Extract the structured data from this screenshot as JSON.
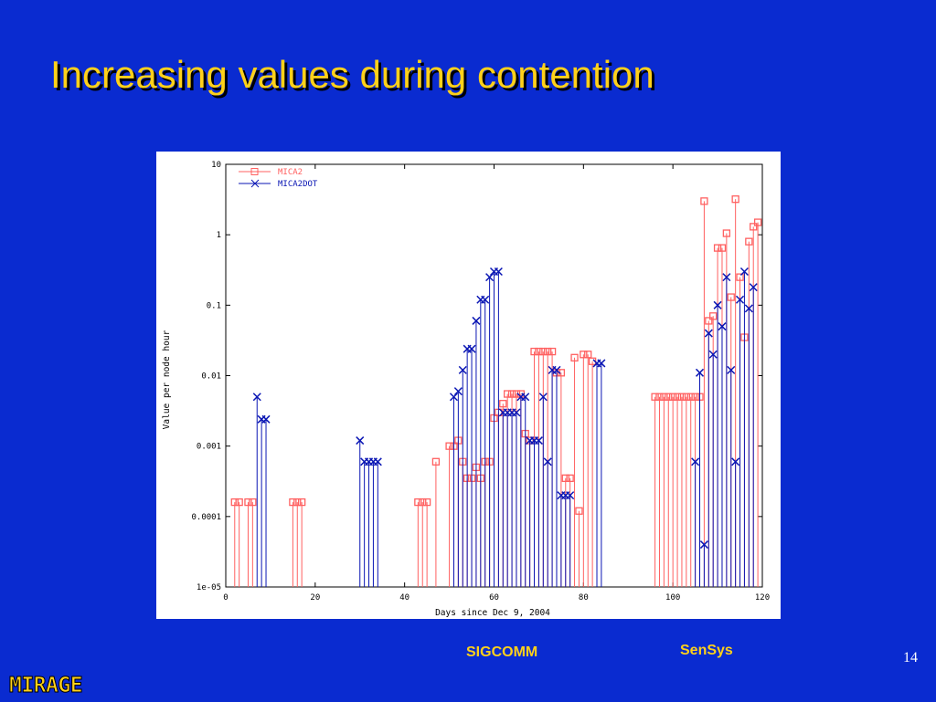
{
  "slide": {
    "title": "Increasing values during contention",
    "annotation_left": "SIGCOMM",
    "annotation_right": "SenSys",
    "page_number": "14",
    "logo_text": "MIRAGE"
  },
  "colors": {
    "background": "#0a2bd0",
    "title": "#ffd11a",
    "mica2": "#ff6060",
    "mica2dot": "#0a16b4"
  },
  "chart_data": {
    "type": "scatter",
    "xlabel": "Days since Dec 9, 2004",
    "ylabel": "Value per node hour",
    "xlim": [
      0,
      120
    ],
    "ylim": [
      1e-05,
      10
    ],
    "yscale": "log",
    "xticks": [
      0,
      20,
      40,
      60,
      80,
      100,
      120
    ],
    "yticks": [
      1e-05,
      0.0001,
      0.001,
      0.01,
      0.1,
      1,
      10
    ],
    "xtick_labels": [
      "0",
      "20",
      "40",
      "60",
      "80",
      "100",
      "120"
    ],
    "ytick_labels": [
      "1e-05",
      "0.0001",
      "0.001",
      "0.01",
      "0.1",
      "1",
      "10"
    ],
    "legend_position": "top-left",
    "grid": false,
    "series": [
      {
        "name": "MICA2",
        "marker": "square",
        "x": [
          2,
          3,
          5,
          6,
          15,
          16,
          17,
          43,
          44,
          45,
          47,
          50,
          51,
          52,
          53,
          54,
          55,
          56,
          57,
          58,
          59,
          60,
          61,
          62,
          63,
          64,
          65,
          66,
          67,
          68,
          69,
          70,
          71,
          72,
          73,
          74,
          75,
          76,
          77,
          78,
          79,
          80,
          81,
          82,
          96,
          97,
          98,
          99,
          100,
          101,
          102,
          103,
          104,
          105,
          106,
          107,
          108,
          109,
          110,
          111,
          112,
          113,
          114,
          115,
          116,
          117,
          118,
          119
        ],
        "y": [
          0.00016,
          0.00016,
          0.00016,
          0.00016,
          0.00016,
          0.00016,
          0.00016,
          0.00016,
          0.00016,
          0.00016,
          0.0006,
          0.001,
          0.001,
          0.0012,
          0.0006,
          0.00035,
          0.00035,
          0.0005,
          0.00035,
          0.0006,
          0.0006,
          0.0025,
          0.003,
          0.004,
          0.0055,
          0.0055,
          0.0055,
          0.0055,
          0.0015,
          0.0012,
          0.022,
          0.022,
          0.022,
          0.022,
          0.022,
          0.011,
          0.011,
          0.00035,
          0.00035,
          0.018,
          0.00012,
          0.02,
          0.02,
          0.016,
          0.005,
          0.005,
          0.005,
          0.005,
          0.005,
          0.005,
          0.005,
          0.005,
          0.005,
          0.005,
          0.005,
          3.0,
          0.06,
          0.07,
          0.65,
          0.65,
          1.05,
          0.13,
          3.2,
          0.25,
          0.035,
          0.8,
          1.3,
          1.5
        ]
      },
      {
        "name": "MICA2DOT",
        "marker": "x",
        "x": [
          7,
          8,
          9,
          30,
          31,
          32,
          33,
          34,
          51,
          52,
          53,
          54,
          55,
          56,
          57,
          58,
          59,
          60,
          61,
          62,
          63,
          64,
          65,
          66,
          67,
          68,
          69,
          70,
          71,
          72,
          73,
          74,
          75,
          76,
          77,
          83,
          84,
          105,
          106,
          107,
          108,
          109,
          110,
          111,
          112,
          113,
          114,
          115,
          116,
          117,
          118
        ],
        "y": [
          0.005,
          0.0024,
          0.0024,
          0.0012,
          0.0006,
          0.0006,
          0.0006,
          0.0006,
          0.005,
          0.006,
          0.012,
          0.024,
          0.024,
          0.06,
          0.12,
          0.12,
          0.25,
          0.3,
          0.3,
          0.003,
          0.003,
          0.003,
          0.003,
          0.005,
          0.005,
          0.0012,
          0.0012,
          0.0012,
          0.005,
          0.0006,
          0.012,
          0.012,
          0.0002,
          0.0002,
          0.0002,
          0.015,
          0.015,
          0.0006,
          0.011,
          4e-05,
          0.04,
          0.02,
          0.1,
          0.05,
          0.25,
          0.012,
          0.0006,
          0.12,
          0.3,
          0.09,
          0.18
        ]
      }
    ]
  }
}
